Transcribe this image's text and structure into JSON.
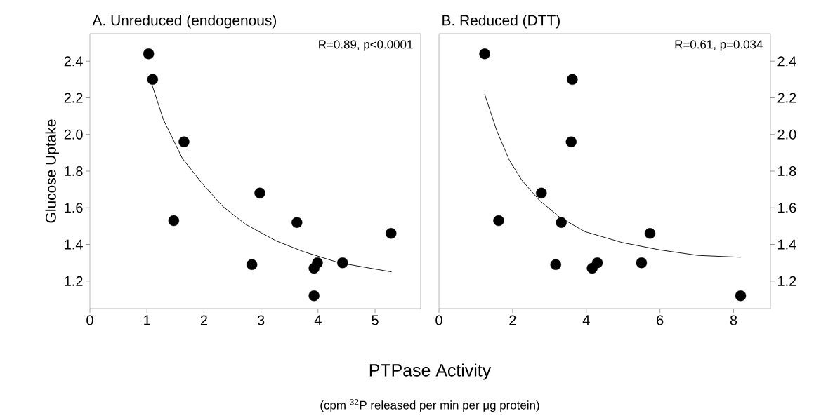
{
  "chart_data": [
    {
      "type": "scatter",
      "title": "A. Unreduced (endogenous)",
      "ylabel": "Glucose Uptake",
      "xlabel": "PTPase Activity",
      "annotations": [
        "R=0.89, p<0.0001",
        "(cpm $^{32}$P released per min per μg protein)"
      ],
      "xlim": [
        0,
        5.8
      ],
      "xticks": [
        0,
        1,
        2,
        3,
        4,
        5
      ],
      "ylim": [
        1.05,
        2.55
      ],
      "yticks": [
        {
          "value": 1.2,
          "label": "1.2"
        },
        {
          "value": 1.4,
          "label": "1.4"
        },
        {
          "value": 1.6,
          "label": "1.6"
        },
        {
          "value": 1.8,
          "label": "1.8"
        },
        {
          "value": 2.0,
          "label": "2.0"
        },
        {
          "value": 2.2,
          "label": "2.2"
        },
        {
          "value": 2.4,
          "label": "2.4"
        }
      ],
      "series": [
        {
          "marker": "circle",
          "color": "#000000",
          "x": [
            1.03,
            1.1,
            1.65,
            1.47,
            2.98,
            2.84,
            3.63,
            3.93,
            3.99,
            3.93,
            4.43,
            5.28
          ],
          "values": [
            2.44,
            2.3,
            1.96,
            1.53,
            1.68,
            1.29,
            1.52,
            1.27,
            1.3,
            1.12,
            1.3,
            1.46
          ]
        },
        {
          "type": "line",
          "marker": "none",
          "color": "#000000",
          "x": [
            1.09,
            1.29,
            1.62,
            1.95,
            2.32,
            2.73,
            3.26,
            3.75,
            4.37,
            5.29
          ],
          "values": [
            2.27,
            2.08,
            1.87,
            1.74,
            1.61,
            1.51,
            1.42,
            1.36,
            1.3,
            1.25
          ]
        }
      ]
    },
    {
      "type": "scatter",
      "title": "B. Reduced (DTT)",
      "annotations": [
        "R=0.61, p=0.034"
      ],
      "xlim": [
        0,
        9
      ],
      "xticks": [
        0,
        2,
        4,
        6,
        8
      ],
      "y2lim": [
        1.05,
        2.55
      ],
      "y2ticks": [
        {
          "value": 1.2,
          "label": "1.2"
        },
        {
          "value": 1.4,
          "label": "1.4"
        },
        {
          "value": 1.6,
          "label": "1.6"
        },
        {
          "value": 1.8,
          "label": "1.8"
        },
        {
          "value": 2.0,
          "label": "2.0"
        },
        {
          "value": 2.2,
          "label": "2.2"
        },
        {
          "value": 2.4,
          "label": "2.4"
        }
      ],
      "series": [
        {
          "marker": "circle",
          "axis": "y2",
          "color": "#000000",
          "x": [
            1.24,
            3.62,
            3.59,
            2.78,
            1.62,
            3.32,
            3.17,
            4.16,
            4.3,
            5.5,
            5.73,
            8.19
          ],
          "values": [
            2.44,
            2.3,
            1.96,
            1.68,
            1.53,
            1.52,
            1.29,
            1.27,
            1.3,
            1.3,
            1.46,
            1.12
          ]
        },
        {
          "type": "line",
          "marker": "none",
          "axis": "y2",
          "color": "#000000",
          "x": [
            1.24,
            1.57,
            1.91,
            2.25,
            2.73,
            3.27,
            3.96,
            4.98,
            6.0,
            7.03,
            8.19
          ],
          "values": [
            2.22,
            2.02,
            1.86,
            1.75,
            1.64,
            1.55,
            1.47,
            1.41,
            1.37,
            1.34,
            1.33
          ]
        }
      ]
    }
  ]
}
